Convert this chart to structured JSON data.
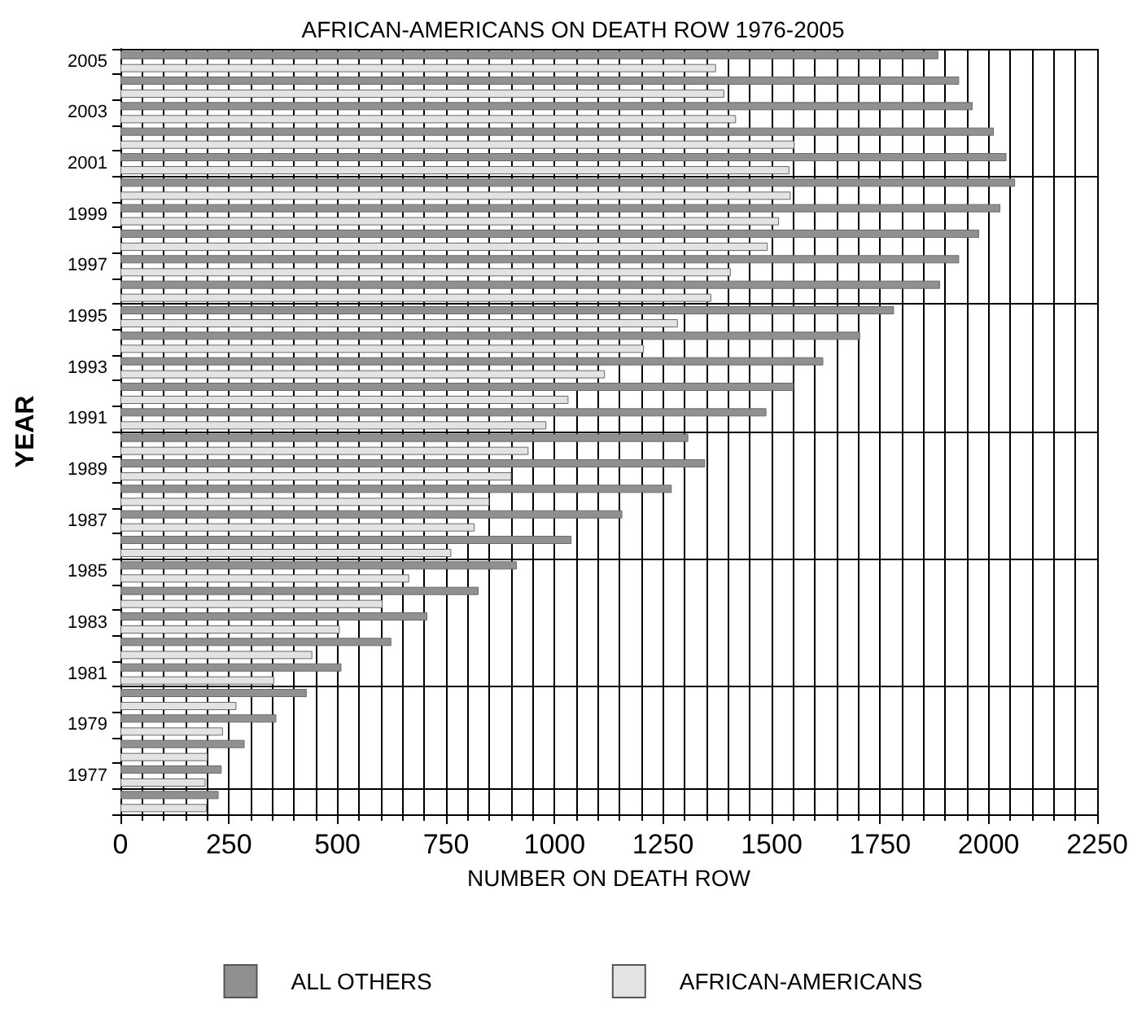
{
  "chart_data": {
    "type": "bar",
    "orientation": "horizontal",
    "title": "AFRICAN-AMERICANS ON DEATH ROW 1976-2005",
    "xlabel": "NUMBER ON DEATH ROW",
    "ylabel": "YEAR",
    "categories": [
      "2005",
      null,
      "2003",
      null,
      "2001",
      null,
      "1999",
      null,
      "1997",
      null,
      "1995",
      null,
      "1993",
      null,
      "1991",
      null,
      "1989",
      null,
      "1987",
      null,
      "1985",
      null,
      "1983",
      null,
      "1981",
      null,
      "1979",
      null,
      "1977",
      null
    ],
    "series": [
      {
        "name": "ALL OTHERS",
        "color": "#909090",
        "values": [
          1884,
          1932,
          1963,
          2012,
          2041,
          2061,
          2027,
          1978,
          1932,
          1888,
          1782,
          1704,
          1619,
          1551,
          1488,
          1308,
          1347,
          1270,
          1156,
          1039,
          913,
          825,
          707,
          624,
          509,
          429,
          359,
          286,
          233,
          226
        ]
      },
      {
        "name": "AFRICAN-AMERICANS",
        "color": "#e3e3e3",
        "values": [
          1372,
          1391,
          1418,
          1553,
          1541,
          1544,
          1517,
          1491,
          1406,
          1361,
          1284,
          1206,
          1116,
          1032,
          981,
          940,
          901,
          850,
          816,
          762,
          665,
          604,
          505,
          442,
          354,
          267,
          236,
          201,
          196,
          199
        ]
      }
    ],
    "xlim": [
      0,
      2250
    ],
    "xticks": [
      0,
      250,
      500,
      750,
      1000,
      1250,
      1500,
      1750,
      2000,
      2250
    ],
    "grid": true,
    "legend": "bottom"
  }
}
